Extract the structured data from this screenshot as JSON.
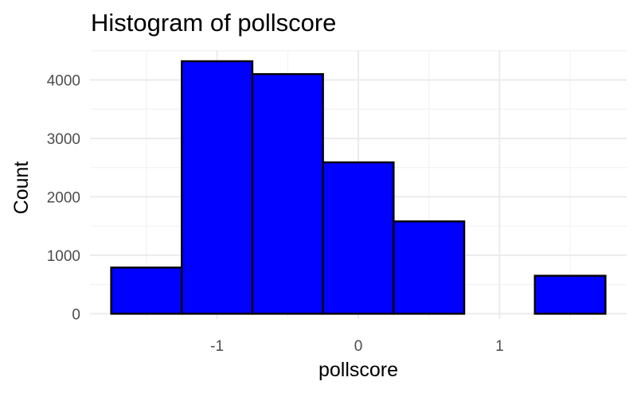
{
  "chart_data": {
    "type": "bar",
    "title": "Histogram of pollscore",
    "xlabel": "pollscore",
    "ylabel": "Count",
    "bins": [
      {
        "x0": -1.75,
        "x1": -1.25,
        "count": 790
      },
      {
        "x0": -1.25,
        "x1": -0.75,
        "count": 4320
      },
      {
        "x0": -0.75,
        "x1": -0.25,
        "count": 4100
      },
      {
        "x0": -0.25,
        "x1": 0.25,
        "count": 2590
      },
      {
        "x0": 0.25,
        "x1": 0.75,
        "count": 1580
      },
      {
        "x0": 0.75,
        "x1": 1.25,
        "count": 0
      },
      {
        "x0": 1.25,
        "x1": 1.75,
        "count": 650
      }
    ],
    "xlim": [
      -1.9,
      1.9
    ],
    "ylim": [
      -90,
      4510
    ],
    "xticks": [
      -1,
      0,
      1
    ],
    "xtick_labels": [
      "-1",
      "0",
      "1"
    ],
    "yticks": [
      0,
      1000,
      2000,
      3000,
      4000
    ],
    "ytick_labels": [
      "0",
      "1000",
      "2000",
      "3000",
      "4000"
    ],
    "bar_fill": "#0000ff",
    "bar_outline": "#000000",
    "grid": true,
    "legend": "none"
  }
}
